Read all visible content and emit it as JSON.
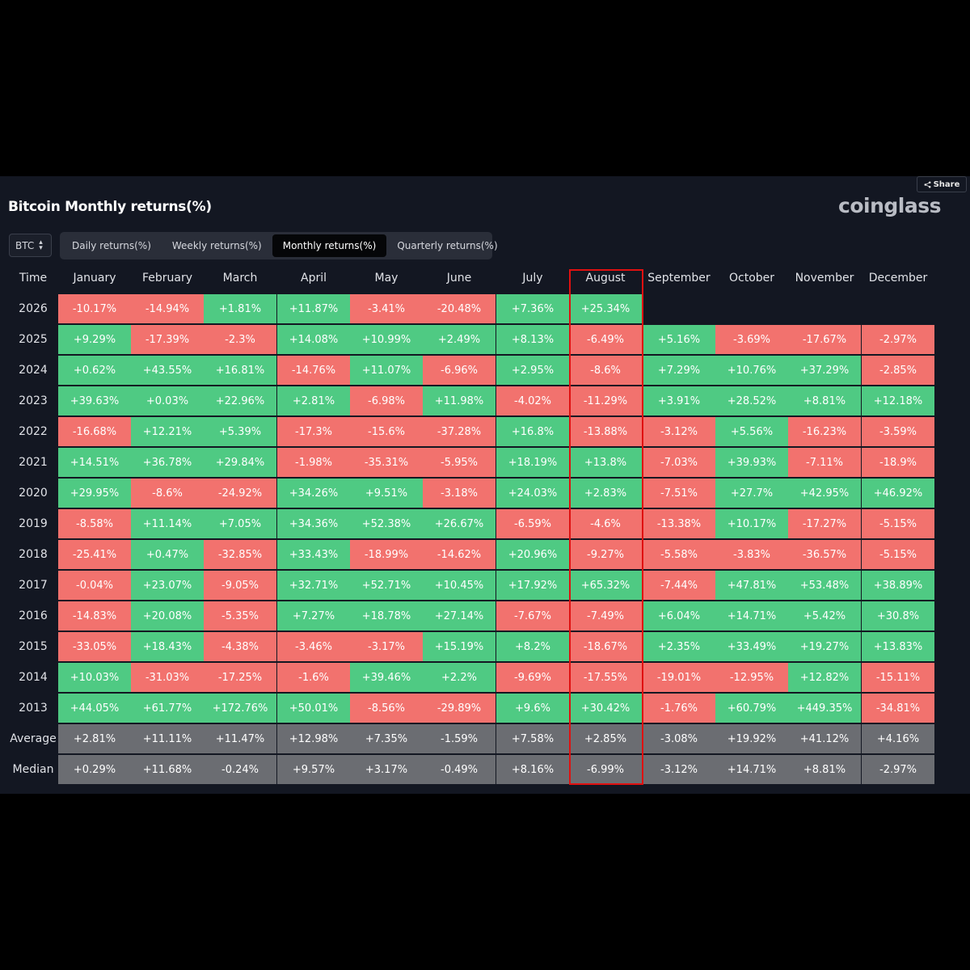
{
  "header": {
    "title": "Bitcoin Monthly returns(%)",
    "logo_text": "coinglass",
    "share_label": "Share"
  },
  "controls": {
    "asset": "BTC",
    "tabs": [
      "Daily returns(%)",
      "Weekly returns(%)",
      "Monthly returns(%)",
      "Quarterly returns(%)"
    ],
    "active_tab": "Monthly returns(%)"
  },
  "table": {
    "time_label": "Time",
    "months": [
      "January",
      "February",
      "March",
      "April",
      "May",
      "June",
      "July",
      "August",
      "September",
      "October",
      "November",
      "December"
    ],
    "highlighted_month": "August",
    "rows": [
      {
        "year": "2026",
        "values": [
          "-10.17%",
          "-14.94%",
          "+1.81%",
          "+11.87%",
          "-3.41%",
          "-20.48%",
          "+7.36%",
          "+25.34%",
          "",
          "",
          "",
          ""
        ]
      },
      {
        "year": "2025",
        "values": [
          "+9.29%",
          "-17.39%",
          "-2.3%",
          "+14.08%",
          "+10.99%",
          "+2.49%",
          "+8.13%",
          "-6.49%",
          "+5.16%",
          "-3.69%",
          "-17.67%",
          "-2.97%"
        ]
      },
      {
        "year": "2024",
        "values": [
          "+0.62%",
          "+43.55%",
          "+16.81%",
          "-14.76%",
          "+11.07%",
          "-6.96%",
          "+2.95%",
          "-8.6%",
          "+7.29%",
          "+10.76%",
          "+37.29%",
          "-2.85%"
        ]
      },
      {
        "year": "2023",
        "values": [
          "+39.63%",
          "+0.03%",
          "+22.96%",
          "+2.81%",
          "-6.98%",
          "+11.98%",
          "-4.02%",
          "-11.29%",
          "+3.91%",
          "+28.52%",
          "+8.81%",
          "+12.18%"
        ]
      },
      {
        "year": "2022",
        "values": [
          "-16.68%",
          "+12.21%",
          "+5.39%",
          "-17.3%",
          "-15.6%",
          "-37.28%",
          "+16.8%",
          "-13.88%",
          "-3.12%",
          "+5.56%",
          "-16.23%",
          "-3.59%"
        ]
      },
      {
        "year": "2021",
        "values": [
          "+14.51%",
          "+36.78%",
          "+29.84%",
          "-1.98%",
          "-35.31%",
          "-5.95%",
          "+18.19%",
          "+13.8%",
          "-7.03%",
          "+39.93%",
          "-7.11%",
          "-18.9%"
        ]
      },
      {
        "year": "2020",
        "values": [
          "+29.95%",
          "-8.6%",
          "-24.92%",
          "+34.26%",
          "+9.51%",
          "-3.18%",
          "+24.03%",
          "+2.83%",
          "-7.51%",
          "+27.7%",
          "+42.95%",
          "+46.92%"
        ]
      },
      {
        "year": "2019",
        "values": [
          "-8.58%",
          "+11.14%",
          "+7.05%",
          "+34.36%",
          "+52.38%",
          "+26.67%",
          "-6.59%",
          "-4.6%",
          "-13.38%",
          "+10.17%",
          "-17.27%",
          "-5.15%"
        ]
      },
      {
        "year": "2018",
        "values": [
          "-25.41%",
          "+0.47%",
          "-32.85%",
          "+33.43%",
          "-18.99%",
          "-14.62%",
          "+20.96%",
          "-9.27%",
          "-5.58%",
          "-3.83%",
          "-36.57%",
          "-5.15%"
        ]
      },
      {
        "year": "2017",
        "values": [
          "-0.04%",
          "+23.07%",
          "-9.05%",
          "+32.71%",
          "+52.71%",
          "+10.45%",
          "+17.92%",
          "+65.32%",
          "-7.44%",
          "+47.81%",
          "+53.48%",
          "+38.89%"
        ]
      },
      {
        "year": "2016",
        "values": [
          "-14.83%",
          "+20.08%",
          "-5.35%",
          "+7.27%",
          "+18.78%",
          "+27.14%",
          "-7.67%",
          "-7.49%",
          "+6.04%",
          "+14.71%",
          "+5.42%",
          "+30.8%"
        ]
      },
      {
        "year": "2015",
        "values": [
          "-33.05%",
          "+18.43%",
          "-4.38%",
          "-3.46%",
          "-3.17%",
          "+15.19%",
          "+8.2%",
          "-18.67%",
          "+2.35%",
          "+33.49%",
          "+19.27%",
          "+13.83%"
        ]
      },
      {
        "year": "2014",
        "values": [
          "+10.03%",
          "-31.03%",
          "-17.25%",
          "-1.6%",
          "+39.46%",
          "+2.2%",
          "-9.69%",
          "-17.55%",
          "-19.01%",
          "-12.95%",
          "+12.82%",
          "-15.11%"
        ]
      },
      {
        "year": "2013",
        "values": [
          "+44.05%",
          "+61.77%",
          "+172.76%",
          "+50.01%",
          "-8.56%",
          "-29.89%",
          "+9.6%",
          "+30.42%",
          "-1.76%",
          "+60.79%",
          "+449.35%",
          "-34.81%"
        ]
      }
    ],
    "stats": [
      {
        "label": "Average",
        "values": [
          "+2.81%",
          "+11.11%",
          "+11.47%",
          "+12.98%",
          "+7.35%",
          "-1.59%",
          "+7.58%",
          "+2.85%",
          "-3.08%",
          "+19.92%",
          "+41.12%",
          "+4.16%"
        ]
      },
      {
        "label": "Median",
        "values": [
          "+0.29%",
          "+11.68%",
          "-0.24%",
          "+9.57%",
          "+3.17%",
          "-0.49%",
          "+8.16%",
          "-6.99%",
          "-3.12%",
          "+14.71%",
          "+8.81%",
          "-2.97%"
        ]
      }
    ]
  },
  "colors": {
    "positive": "#4fca83",
    "negative": "#f2726e",
    "stat": "#6b6d72",
    "highlight_border": "#e01010",
    "background": "#131722"
  }
}
